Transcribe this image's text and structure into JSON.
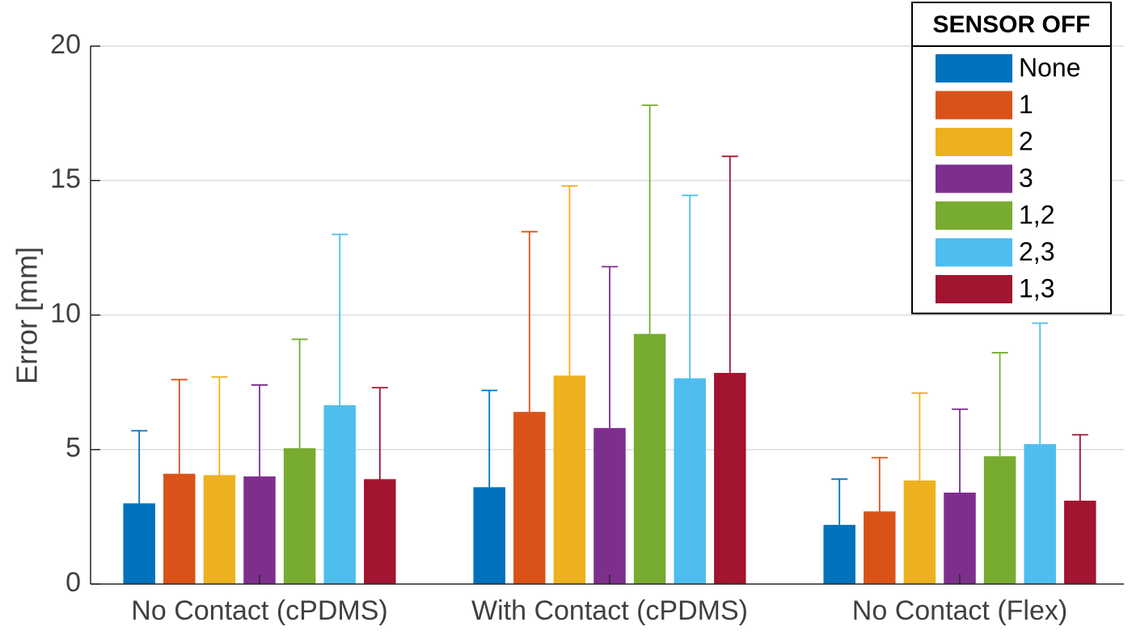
{
  "chart_data": {
    "type": "bar",
    "title": "",
    "xlabel": "",
    "ylabel": "Error [mm]",
    "ylim": [
      0,
      20
    ],
    "yticks": [
      0,
      5,
      10,
      15,
      20
    ],
    "grid": "horizontal",
    "categories": [
      "No Contact (cPDMS)",
      "With Contact (cPDMS)",
      "No Contact (Flex)"
    ],
    "legend": {
      "title": "SENSOR OFF",
      "placement": "top-right"
    },
    "error_bars": "one-sided upper for most bars; lower whiskers visible for series 1,3 in groups 1 and 3",
    "series": [
      {
        "name": "None",
        "color": "#0072BD",
        "values": [
          3.0,
          3.6,
          2.2
        ],
        "err_high": [
          5.7,
          7.2,
          3.9
        ]
      },
      {
        "name": "1",
        "color": "#D95319",
        "values": [
          4.1,
          6.4,
          2.7
        ],
        "err_high": [
          7.6,
          13.1,
          4.7
        ]
      },
      {
        "name": "2",
        "color": "#EDB120",
        "values": [
          4.05,
          7.75,
          3.85
        ],
        "err_high": [
          7.7,
          14.8,
          7.1
        ]
      },
      {
        "name": "3",
        "color": "#7E2F8E",
        "values": [
          4.0,
          5.8,
          3.4
        ],
        "err_high": [
          7.4,
          11.8,
          6.5
        ]
      },
      {
        "name": "1,2",
        "color": "#77AC30",
        "values": [
          5.05,
          9.3,
          4.75
        ],
        "err_high": [
          9.1,
          17.8,
          8.6
        ]
      },
      {
        "name": "2,3",
        "color": "#4DBEEE",
        "values": [
          6.65,
          7.65,
          5.2
        ],
        "err_high": [
          13.0,
          14.45,
          9.7
        ]
      },
      {
        "name": "1,3",
        "color": "#A2142F",
        "values": [
          3.9,
          7.85,
          3.1
        ],
        "err_high": [
          7.3,
          15.9,
          5.55
        ],
        "err_low": [
          0.55,
          0,
          0.7
        ]
      }
    ]
  }
}
